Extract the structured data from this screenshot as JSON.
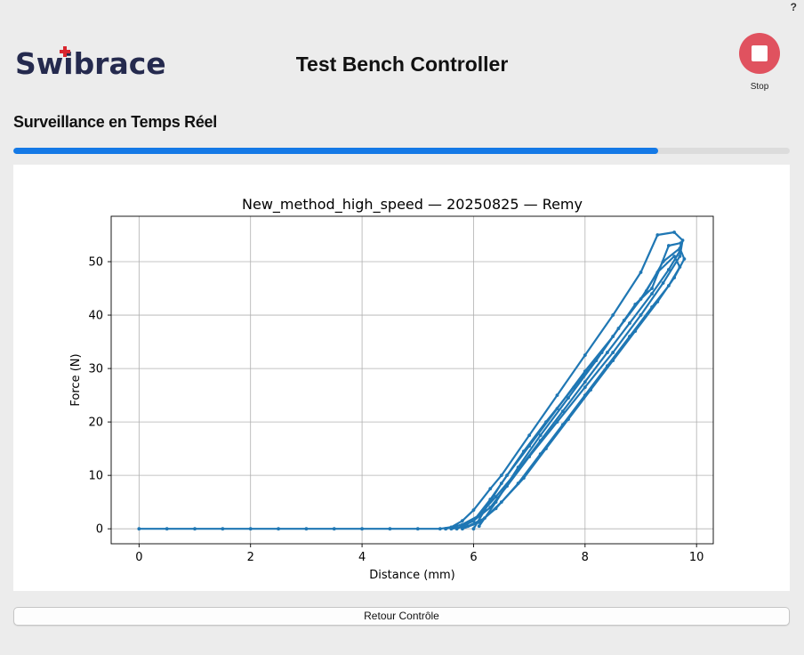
{
  "header": {
    "help_label": "?",
    "logo_text": "Swibrace",
    "title": "Test Bench Controller",
    "stop_label": "Stop"
  },
  "section": {
    "title": "Surveillance en Temps Réel"
  },
  "progress": {
    "fraction": 0.83
  },
  "footer": {
    "return_label": "Retour Contrôle"
  },
  "colors": {
    "accent": "#1479e6",
    "stop": "#e0525f",
    "series": "#1f77b4",
    "logo": "#252a4e",
    "logo_cross": "#d9262e"
  },
  "chart_data": {
    "type": "line",
    "title": "New_method_high_speed — 20250825 — Remy",
    "xlabel": "Distance (mm)",
    "ylabel": "Force (N)",
    "xlim": [
      -0.5,
      10.3
    ],
    "ylim": [
      -2.8,
      58.5
    ],
    "xticks": [
      0,
      2,
      4,
      6,
      8,
      10
    ],
    "yticks": [
      0,
      10,
      20,
      30,
      40,
      50
    ],
    "grid": true,
    "series_color": "#1f77b4",
    "series": [
      {
        "x": [
          0.0,
          0.5,
          1.0,
          1.5,
          2.0,
          2.5,
          3.0,
          3.5,
          4.0,
          4.5,
          5.0,
          5.4,
          5.7,
          6.0,
          6.3,
          6.6,
          7.0,
          7.5,
          8.0,
          8.5,
          9.0,
          9.4,
          9.7,
          9.75,
          9.6,
          9.3,
          9.0,
          8.5,
          8.0,
          7.5,
          7.0,
          6.5,
          6.3,
          6.0,
          5.8,
          5.6,
          5.5
        ],
        "y": [
          0,
          0,
          0,
          0,
          0,
          0,
          0,
          0,
          0,
          0,
          0,
          0,
          0.5,
          1.5,
          4,
          8,
          13.5,
          20,
          26.5,
          33,
          40,
          46,
          51,
          54,
          55.5,
          55,
          48,
          40,
          32.5,
          25,
          17.5,
          10,
          7.5,
          3.5,
          1.5,
          0.3,
          0
        ]
      },
      {
        "x": [
          5.5,
          5.8,
          6.1,
          6.4,
          6.8,
          7.2,
          7.6,
          8.0,
          8.4,
          8.8,
          9.2,
          9.5,
          9.7,
          9.72,
          9.5,
          9.2,
          8.9,
          8.5,
          8.0,
          7.5,
          7.0,
          6.6,
          6.3,
          6.0,
          5.7
        ],
        "y": [
          0,
          0.8,
          2.5,
          6,
          11,
          16.5,
          22,
          27.5,
          33,
          38.5,
          44,
          48.5,
          52,
          53.5,
          53,
          45,
          42,
          36,
          29.5,
          22.5,
          15.5,
          10,
          5.5,
          1.5,
          0
        ]
      },
      {
        "x": [
          5.6,
          5.9,
          6.2,
          6.5,
          6.9,
          7.3,
          7.7,
          8.1,
          8.5,
          8.9,
          9.3,
          9.6,
          9.78,
          9.7,
          9.4,
          9.1,
          8.7,
          8.3,
          7.8,
          7.3,
          6.9,
          6.5,
          6.2,
          6.0
        ],
        "y": [
          0,
          0.5,
          2,
          5,
          9.5,
          15,
          20.5,
          26,
          31.5,
          37,
          42.5,
          47,
          50.5,
          52.5,
          50,
          44.5,
          39,
          33,
          26.5,
          20,
          14.5,
          8.5,
          3.5,
          0
        ]
      },
      {
        "x": [
          5.8,
          6.1,
          6.4,
          6.8,
          7.2,
          7.6,
          8.0,
          8.4,
          8.8,
          9.2,
          9.5,
          9.7,
          9.6,
          9.3,
          9.0,
          8.6,
          8.2,
          7.7,
          7.2,
          6.8,
          6.4,
          6.1
        ],
        "y": [
          0,
          1.2,
          3.8,
          8.5,
          14,
          19.5,
          25,
          30.5,
          36,
          41.5,
          45.5,
          49,
          51,
          48,
          43,
          37.5,
          31.5,
          24.5,
          17.5,
          11.5,
          5,
          0.5
        ]
      }
    ]
  }
}
